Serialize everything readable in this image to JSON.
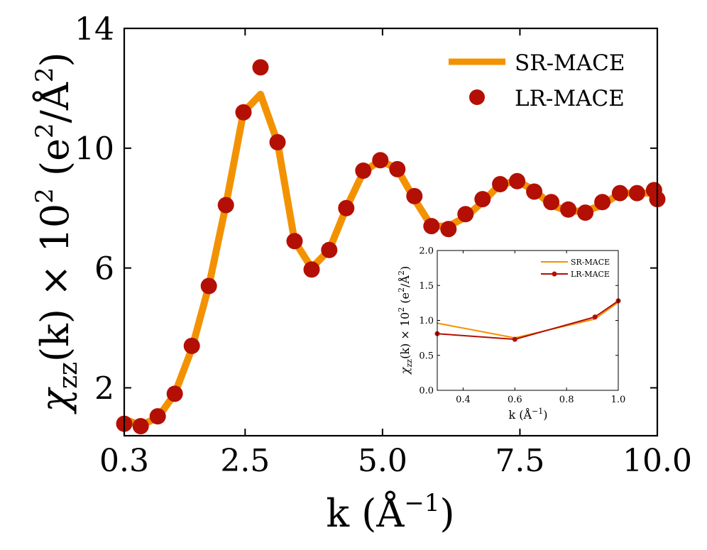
{
  "chart_data": [
    {
      "type": "line",
      "xlabel_base": "k (Å",
      "xlabel_sup": "−1",
      "xlabel_close": ")",
      "ylabel_sym": "χ",
      "ylabel_sub": "zz",
      "ylabel_mid": "(k) × 10",
      "ylabel_exp": "2",
      "ylabel_units_open": " (e",
      "ylabel_units_exp": "2",
      "ylabel_units_mid": "/Å",
      "ylabel_units_exp2": "2",
      "ylabel_units_close": ")",
      "xlim": [
        0.3,
        10.0
      ],
      "ylim": [
        0.4,
        14.0
      ],
      "xticks": [
        0.3,
        2.5,
        5.0,
        7.5,
        10.0
      ],
      "xtick_labels": [
        "0.3",
        "2.5",
        "5.0",
        "7.5",
        "10.0"
      ],
      "yticks": [
        2,
        6,
        10,
        14
      ],
      "ytick_labels": [
        "2",
        "6",
        "10",
        "14"
      ],
      "legend_position": "top-right",
      "series": [
        {
          "name": "SR-MACE",
          "style": "line",
          "color": "#f39200",
          "x": [
            0.3,
            0.6,
            0.91,
            1.22,
            1.53,
            1.84,
            2.15,
            2.47,
            2.78,
            3.09,
            3.4,
            3.71,
            4.03,
            4.34,
            4.65,
            4.96,
            5.27,
            5.58,
            5.89,
            6.2,
            6.51,
            6.82,
            7.14,
            7.45,
            7.76,
            8.07,
            8.38,
            8.69,
            9.0,
            9.32,
            9.63,
            9.94,
            10.0
          ],
          "y": [
            0.95,
            0.75,
            1.0,
            1.8,
            3.3,
            5.4,
            8.1,
            11.2,
            11.8,
            10.2,
            6.9,
            6.0,
            6.6,
            8.0,
            9.2,
            9.6,
            9.3,
            8.3,
            7.4,
            7.4,
            7.7,
            8.2,
            8.8,
            8.9,
            8.6,
            8.1,
            7.9,
            7.9,
            8.1,
            8.5,
            8.5,
            8.5,
            8.3
          ]
        },
        {
          "name": "LR-MACE",
          "style": "marker",
          "color": "#b30f05",
          "x": [
            0.3,
            0.6,
            0.91,
            1.22,
            1.53,
            1.84,
            2.15,
            2.47,
            2.78,
            3.09,
            3.4,
            3.71,
            4.03,
            4.34,
            4.65,
            4.96,
            5.27,
            5.58,
            5.89,
            6.2,
            6.51,
            6.82,
            7.14,
            7.45,
            7.76,
            8.07,
            8.38,
            8.69,
            9.0,
            9.32,
            9.63,
            9.94,
            10.0
          ],
          "y": [
            0.8,
            0.72,
            1.05,
            1.8,
            3.4,
            5.4,
            8.1,
            11.2,
            12.7,
            10.2,
            6.9,
            5.95,
            6.6,
            8.0,
            9.25,
            9.6,
            9.3,
            8.4,
            7.4,
            7.3,
            7.8,
            8.3,
            8.8,
            8.9,
            8.55,
            8.2,
            7.95,
            7.85,
            8.2,
            8.5,
            8.5,
            8.6,
            8.3
          ]
        }
      ]
    },
    {
      "type": "line",
      "xlabel_base": "k (Å",
      "xlabel_sup": "−1",
      "xlabel_close": ")",
      "ylabel_sym": "χ",
      "ylabel_sub": "zz",
      "ylabel_mid": "(k) × 10",
      "ylabel_exp": "2",
      "ylabel_units_open": " (e",
      "ylabel_units_exp": "2",
      "ylabel_units_mid": "/Å",
      "ylabel_units_exp2": "2",
      "ylabel_units_close": ")",
      "xlim": [
        0.3,
        1.0
      ],
      "ylim": [
        0.0,
        2.0
      ],
      "xticks": [
        0.4,
        0.6,
        0.8,
        1.0
      ],
      "xtick_labels": [
        "0.4",
        "0.6",
        "0.8",
        "1.0"
      ],
      "yticks": [
        0.0,
        0.5,
        1.0,
        1.5,
        2.0
      ],
      "ytick_labels": [
        "0.0",
        "0.5",
        "1.0",
        "1.5",
        "2.0"
      ],
      "legend_position": "top-right",
      "series": [
        {
          "name": "SR-MACE",
          "style": "line",
          "color": "#f39200",
          "x": [
            0.3,
            0.6,
            0.91,
            1.0
          ],
          "y": [
            0.96,
            0.75,
            1.02,
            1.26
          ]
        },
        {
          "name": "LR-MACE",
          "style": "line-marker",
          "color": "#b30f05",
          "x": [
            0.3,
            0.6,
            0.91,
            1.0
          ],
          "y": [
            0.81,
            0.73,
            1.05,
            1.28
          ]
        }
      ]
    }
  ]
}
